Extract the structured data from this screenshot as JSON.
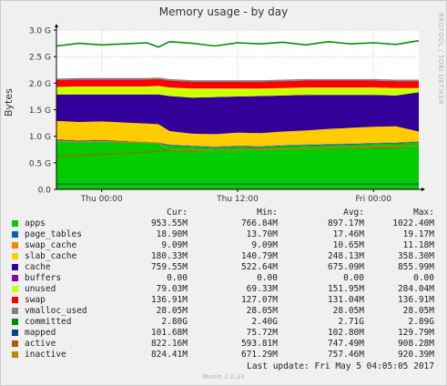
{
  "title": "Memory usage - by day",
  "side_credit": "RRDTOOL / TOBI OETIKER",
  "footer": {
    "last_update": "Last update:  Fri May  5 04:05:05 2017",
    "version": "Munin 2.0.33"
  },
  "legend_header": {
    "cur": "Cur:",
    "min": "Min:",
    "avg": "Avg:",
    "max": "Max:"
  },
  "legend": [
    {
      "name": "apps",
      "color": "#00cc00",
      "cur": "953.55M",
      "min": "766.84M",
      "avg": "897.17M",
      "max": "1022.40M"
    },
    {
      "name": "page_tables",
      "color": "#0066b3",
      "cur": "18.90M",
      "min": "13.70M",
      "avg": "17.46M",
      "max": "19.17M"
    },
    {
      "name": "swap_cache",
      "color": "#ff8000",
      "cur": "9.09M",
      "min": "9.09M",
      "avg": "10.65M",
      "max": "11.18M"
    },
    {
      "name": "slab_cache",
      "color": "#ffcc00",
      "cur": "180.33M",
      "min": "140.79M",
      "avg": "248.13M",
      "max": "358.30M"
    },
    {
      "name": "cache",
      "color": "#330099",
      "cur": "759.55M",
      "min": "522.64M",
      "avg": "675.09M",
      "max": "855.99M"
    },
    {
      "name": "buffers",
      "color": "#990099",
      "cur": "0.00",
      "min": "0.00",
      "avg": "0.00",
      "max": "0.00"
    },
    {
      "name": "unused",
      "color": "#ccff00",
      "cur": "79.03M",
      "min": "69.33M",
      "avg": "151.95M",
      "max": "284.04M"
    },
    {
      "name": "swap",
      "color": "#ff0000",
      "cur": "136.91M",
      "min": "127.07M",
      "avg": "131.04M",
      "max": "136.91M"
    },
    {
      "name": "vmalloc_used",
      "color": "#808080",
      "cur": "28.05M",
      "min": "28.05M",
      "avg": "28.05M",
      "max": "28.05M"
    },
    {
      "name": "committed",
      "color": "#008f00",
      "cur": "2.80G",
      "min": "2.40G",
      "avg": "2.71G",
      "max": "2.89G"
    },
    {
      "name": "mapped",
      "color": "#00487d",
      "cur": "101.68M",
      "min": "75.72M",
      "avg": "102.80M",
      "max": "129.79M"
    },
    {
      "name": "active",
      "color": "#b35a00",
      "cur": "822.16M",
      "min": "593.81M",
      "avg": "747.49M",
      "max": "908.28M"
    },
    {
      "name": "inactive",
      "color": "#b38f00",
      "cur": "824.41M",
      "min": "671.29M",
      "avg": "757.46M",
      "max": "920.39M"
    }
  ],
  "chart_data": {
    "type": "area",
    "title": "Memory usage - by day",
    "ylabel": "Bytes",
    "ylim": [
      0,
      3.0
    ],
    "yunit": "G",
    "yticks": [
      "0.0",
      "0.5 G",
      "1.0 G",
      "1.5 G",
      "2.0 G",
      "2.5 G",
      "3.0 G"
    ],
    "ytick_values": [
      0,
      0.5,
      1.0,
      1.5,
      2.0,
      2.5,
      3.0
    ],
    "xticks": [
      {
        "label": "Thu 00:00",
        "hour": 4
      },
      {
        "label": "Thu 12:00",
        "hour": 16
      },
      {
        "label": "Fri 00:00",
        "hour": 28
      }
    ],
    "xrange_hours": [
      0,
      32
    ],
    "grid": true,
    "x_hours": [
      0,
      2,
      4,
      6,
      8,
      9,
      10,
      12,
      14,
      16,
      18,
      20,
      22,
      24,
      26,
      28,
      30,
      32
    ],
    "series": [
      {
        "name": "apps",
        "kind": "stack",
        "values": [
          0.92,
          0.9,
          0.91,
          0.89,
          0.87,
          0.86,
          0.82,
          0.8,
          0.78,
          0.8,
          0.79,
          0.81,
          0.82,
          0.83,
          0.84,
          0.85,
          0.86,
          0.88
        ]
      },
      {
        "name": "page_tables",
        "kind": "stack",
        "values": [
          0.018,
          0.018,
          0.018,
          0.018,
          0.018,
          0.018,
          0.018,
          0.018,
          0.018,
          0.018,
          0.018,
          0.018,
          0.018,
          0.018,
          0.018,
          0.018,
          0.018,
          0.018
        ]
      },
      {
        "name": "swap_cache",
        "kind": "stack",
        "values": [
          0.01,
          0.01,
          0.01,
          0.01,
          0.01,
          0.01,
          0.01,
          0.01,
          0.01,
          0.01,
          0.01,
          0.01,
          0.01,
          0.01,
          0.01,
          0.01,
          0.01,
          0.01
        ]
      },
      {
        "name": "slab_cache",
        "kind": "stack",
        "values": [
          0.34,
          0.34,
          0.34,
          0.34,
          0.34,
          0.34,
          0.25,
          0.22,
          0.23,
          0.24,
          0.24,
          0.25,
          0.26,
          0.28,
          0.29,
          0.3,
          0.3,
          0.18
        ]
      },
      {
        "name": "cache",
        "kind": "stack",
        "values": [
          0.5,
          0.52,
          0.51,
          0.53,
          0.55,
          0.56,
          0.66,
          0.68,
          0.7,
          0.68,
          0.7,
          0.68,
          0.67,
          0.64,
          0.62,
          0.6,
          0.58,
          0.74
        ]
      },
      {
        "name": "buffers",
        "kind": "stack",
        "values": [
          0,
          0,
          0,
          0,
          0,
          0,
          0,
          0,
          0,
          0,
          0,
          0,
          0,
          0,
          0,
          0,
          0,
          0
        ]
      },
      {
        "name": "unused",
        "kind": "stack",
        "values": [
          0.14,
          0.15,
          0.15,
          0.15,
          0.15,
          0.16,
          0.16,
          0.17,
          0.16,
          0.15,
          0.14,
          0.14,
          0.14,
          0.14,
          0.14,
          0.14,
          0.14,
          0.08
        ]
      },
      {
        "name": "swap",
        "kind": "stack",
        "values": [
          0.13,
          0.13,
          0.13,
          0.13,
          0.13,
          0.13,
          0.13,
          0.13,
          0.13,
          0.13,
          0.13,
          0.13,
          0.13,
          0.13,
          0.13,
          0.13,
          0.13,
          0.13
        ]
      },
      {
        "name": "vmalloc_used",
        "kind": "stack",
        "values": [
          0.028,
          0.028,
          0.028,
          0.028,
          0.028,
          0.028,
          0.028,
          0.028,
          0.028,
          0.028,
          0.028,
          0.028,
          0.028,
          0.028,
          0.028,
          0.028,
          0.028,
          0.028
        ]
      },
      {
        "name": "committed",
        "kind": "line",
        "values": [
          2.7,
          2.75,
          2.72,
          2.74,
          2.76,
          2.68,
          2.78,
          2.75,
          2.7,
          2.76,
          2.74,
          2.77,
          2.72,
          2.78,
          2.74,
          2.76,
          2.73,
          2.8
        ]
      },
      {
        "name": "mapped",
        "kind": "line",
        "values": [
          0.1,
          0.1,
          0.1,
          0.1,
          0.1,
          0.1,
          0.1,
          0.1,
          0.1,
          0.1,
          0.1,
          0.1,
          0.1,
          0.1,
          0.1,
          0.1,
          0.1,
          0.1
        ]
      },
      {
        "name": "active",
        "kind": "line",
        "values": [
          0.62,
          0.64,
          0.66,
          0.68,
          0.7,
          0.72,
          0.74,
          0.72,
          0.74,
          0.75,
          0.76,
          0.76,
          0.77,
          0.77,
          0.78,
          0.78,
          0.79,
          0.82
        ]
      },
      {
        "name": "inactive",
        "kind": "line",
        "values": [
          0.9,
          0.89,
          0.9,
          0.89,
          0.88,
          0.87,
          0.75,
          0.74,
          0.73,
          0.74,
          0.75,
          0.76,
          0.77,
          0.78,
          0.79,
          0.8,
          0.81,
          0.82
        ]
      }
    ]
  }
}
